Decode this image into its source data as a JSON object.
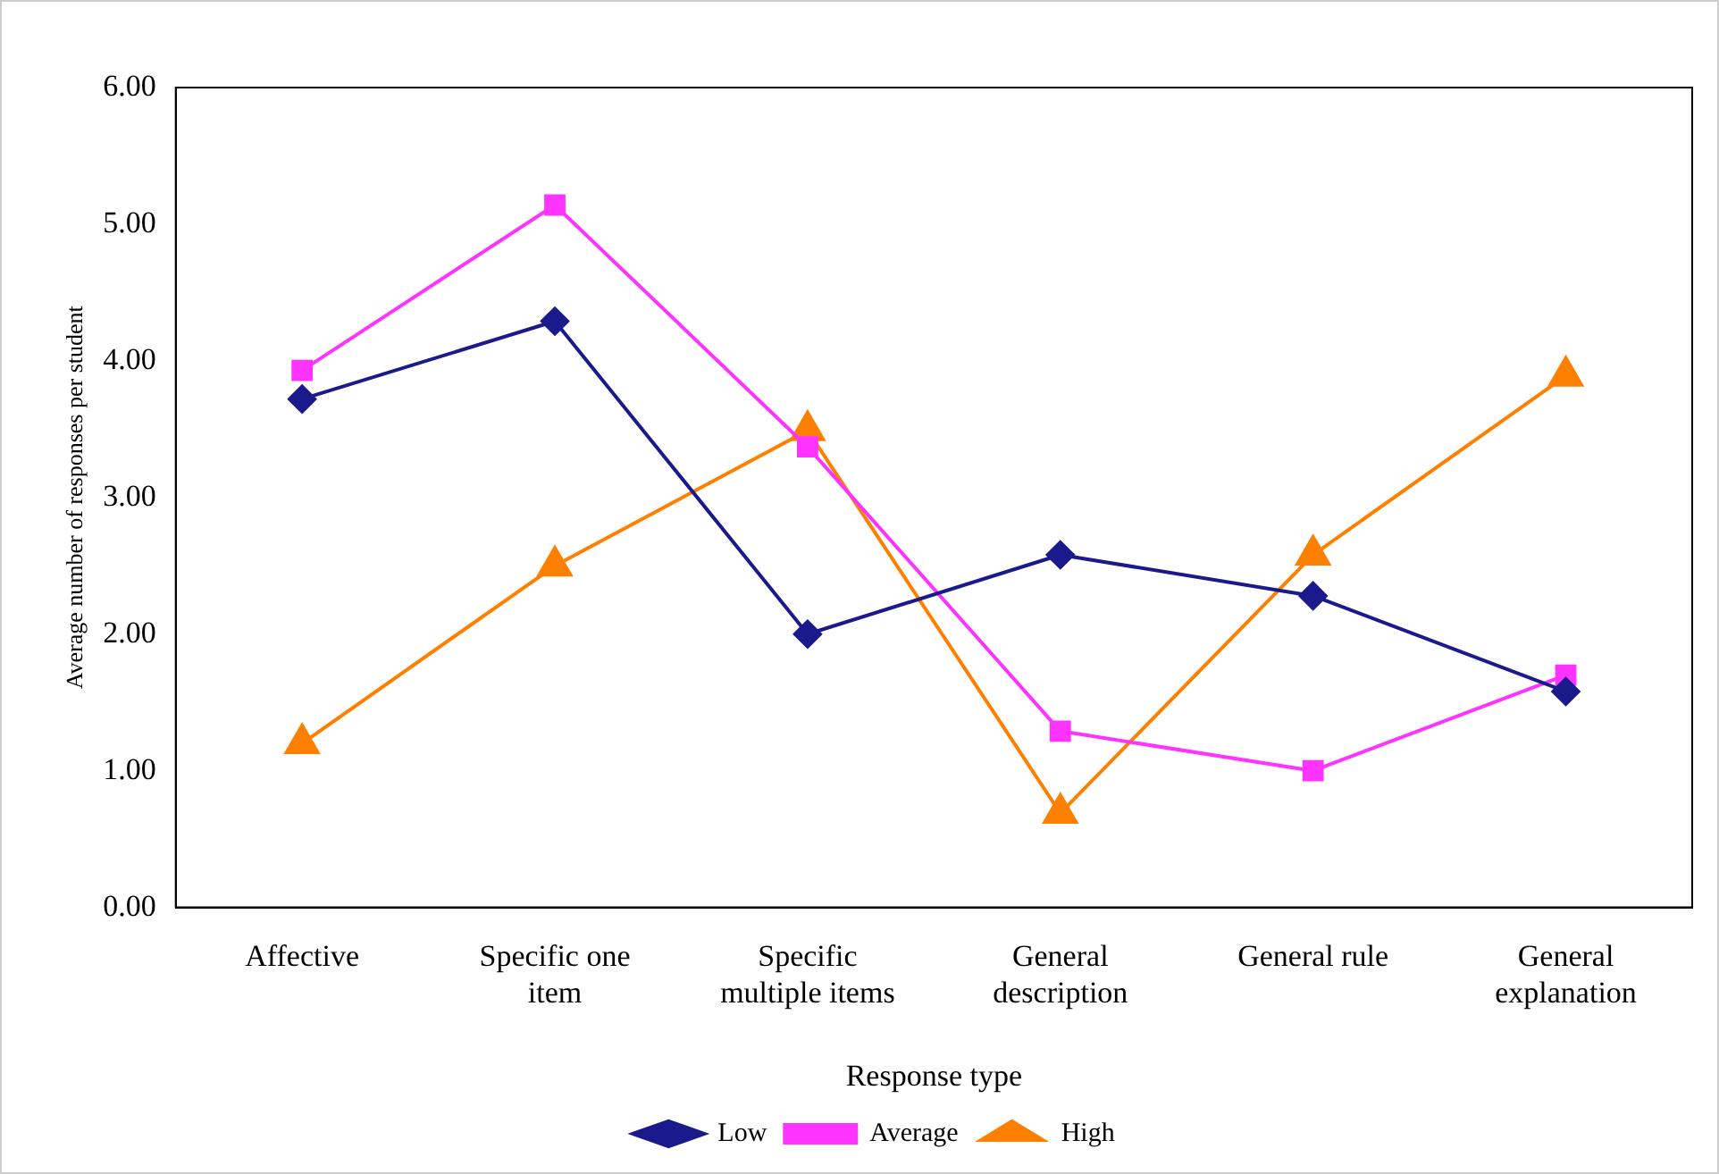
{
  "chart_data": {
    "type": "line",
    "xlabel": "Response type",
    "ylabel": "Average number of responses per student",
    "categories": [
      "Affective",
      "Specific  one item",
      "Specific multiple items",
      "General description",
      "General rule",
      "General explanation"
    ],
    "series": [
      {
        "name": "Low",
        "color": "#1a1a8c",
        "marker": "diamond",
        "values": [
          3.72,
          4.29,
          2.0,
          2.58,
          2.28,
          1.58
        ]
      },
      {
        "name": "Average",
        "color": "#ff33ff",
        "marker": "square",
        "values": [
          3.93,
          5.14,
          3.37,
          1.29,
          1.0,
          1.7
        ]
      },
      {
        "name": "High",
        "color": "#ff8000",
        "marker": "triangle",
        "values": [
          1.2,
          2.5,
          3.49,
          0.69,
          2.58,
          3.89
        ]
      }
    ],
    "ylim": [
      0,
      6
    ],
    "yticks": [
      {
        "value": 0,
        "label": "0.00"
      },
      {
        "value": 1,
        "label": "1.00"
      },
      {
        "value": 2,
        "label": "2.00"
      },
      {
        "value": 3,
        "label": "3.00"
      },
      {
        "value": 4,
        "label": "4.00"
      },
      {
        "value": 5,
        "label": "5.00"
      },
      {
        "value": 6,
        "label": "6.00"
      }
    ],
    "grid": false,
    "legend": "bottom",
    "line_style": "solid"
  }
}
